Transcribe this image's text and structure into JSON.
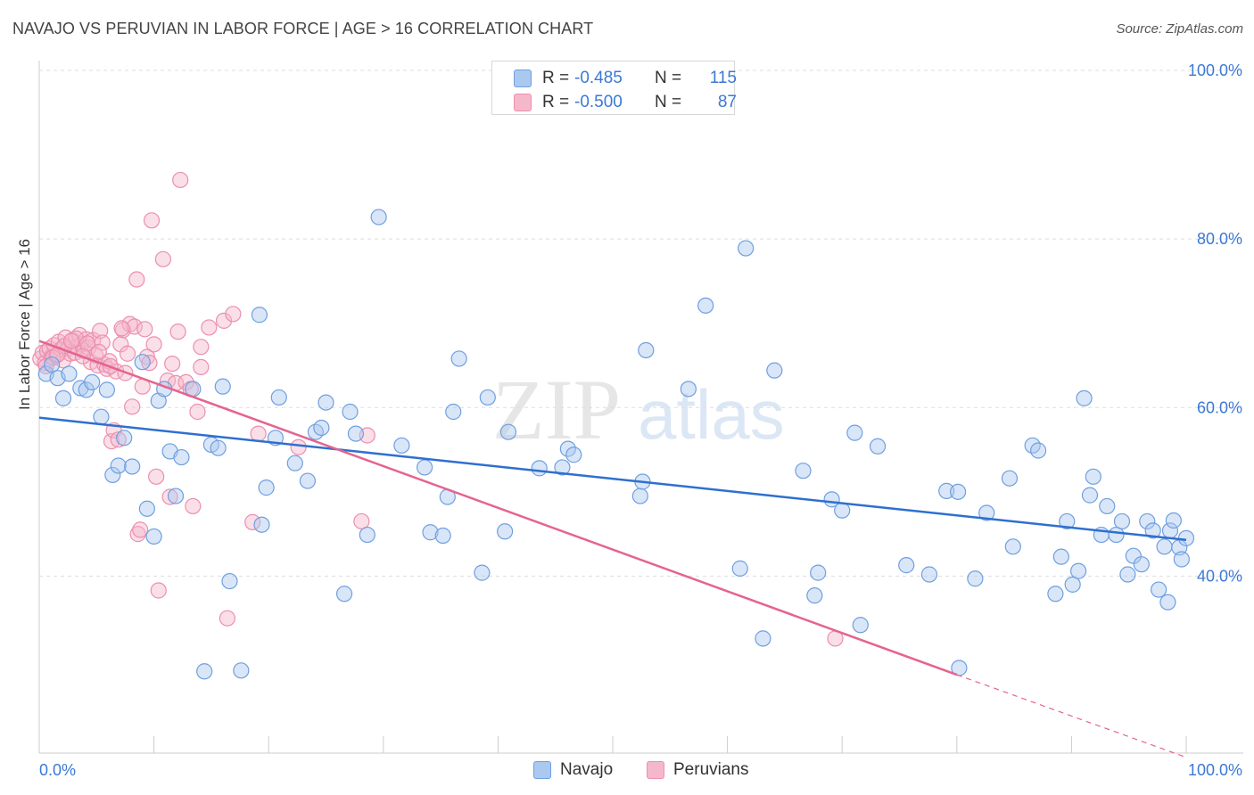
{
  "title": "NAVAJO VS PERUVIAN IN LABOR FORCE | AGE > 16 CORRELATION CHART",
  "source": "Source: ZipAtlas.com",
  "watermark": {
    "zip": "ZIP",
    "atlas": "atlas"
  },
  "legend": {
    "navajo": {
      "r_label": "R =",
      "r_value": "-0.485",
      "n_label": "N =",
      "n_value": "115"
    },
    "peruvians": {
      "r_label": "R =",
      "r_value": "-0.500",
      "n_label": "N =",
      "n_value": "87"
    }
  },
  "bottom_legend": {
    "navajo": "Navajo",
    "peruvians": "Peruvians"
  },
  "colors": {
    "navajo_fill": "#aac8f0",
    "navajo_stroke": "#6f9fe0",
    "navajo_line": "#2f6fcf",
    "peru_fill": "#f5b8cb",
    "peru_stroke": "#ec8fae",
    "peru_line": "#e5648f",
    "axis_text": "#3b78d6",
    "grid": "#dddddd"
  },
  "chart_data": {
    "type": "scatter",
    "title": "NAVAJO VS PERUVIAN IN LABOR FORCE | AGE > 16 CORRELATION CHART",
    "xlabel": "",
    "ylabel": "In Labor Force | Age > 16",
    "xlim": [
      0,
      100
    ],
    "ylim": [
      19,
      100
    ],
    "x_tick_labels": [
      "0.0%",
      "100.0%"
    ],
    "y_ticks": [
      40,
      60,
      80,
      100
    ],
    "y_tick_labels": [
      "40.0%",
      "60.0%",
      "80.0%",
      "100.0%"
    ],
    "series": [
      {
        "name": "Navajo",
        "trend": {
          "x": [
            0,
            100
          ],
          "y": [
            58.8,
            44.3
          ]
        },
        "points": [
          [
            0.6,
            64.0
          ],
          [
            1.1,
            65.1
          ],
          [
            1.6,
            63.5
          ],
          [
            2.1,
            61.1
          ],
          [
            2.6,
            64.0
          ],
          [
            3.6,
            62.3
          ],
          [
            4.1,
            62.1
          ],
          [
            4.6,
            63.0
          ],
          [
            5.4,
            58.9
          ],
          [
            5.9,
            62.1
          ],
          [
            6.4,
            52.0
          ],
          [
            6.9,
            53.1
          ],
          [
            7.4,
            56.4
          ],
          [
            8.1,
            53.0
          ],
          [
            9.0,
            65.4
          ],
          [
            9.4,
            48.0
          ],
          [
            10.0,
            44.7
          ],
          [
            10.4,
            60.8
          ],
          [
            10.9,
            62.2
          ],
          [
            11.4,
            54.8
          ],
          [
            11.9,
            49.5
          ],
          [
            12.4,
            54.1
          ],
          [
            13.4,
            62.2
          ],
          [
            14.4,
            28.7
          ],
          [
            15.0,
            55.6
          ],
          [
            15.6,
            55.2
          ],
          [
            16.0,
            62.5
          ],
          [
            16.6,
            39.4
          ],
          [
            17.6,
            28.8
          ],
          [
            19.2,
            71.0
          ],
          [
            19.4,
            46.1
          ],
          [
            19.8,
            50.5
          ],
          [
            20.6,
            56.4
          ],
          [
            20.9,
            61.2
          ],
          [
            22.3,
            53.4
          ],
          [
            23.4,
            51.3
          ],
          [
            24.1,
            57.1
          ],
          [
            24.6,
            57.6
          ],
          [
            25.0,
            60.6
          ],
          [
            26.6,
            37.9
          ],
          [
            27.1,
            59.5
          ],
          [
            27.6,
            56.9
          ],
          [
            28.6,
            44.9
          ],
          [
            29.6,
            82.6
          ],
          [
            31.6,
            55.5
          ],
          [
            33.6,
            52.9
          ],
          [
            34.1,
            45.2
          ],
          [
            35.2,
            44.8
          ],
          [
            35.6,
            49.4
          ],
          [
            36.1,
            59.5
          ],
          [
            36.6,
            65.8
          ],
          [
            38.6,
            40.4
          ],
          [
            39.1,
            61.2
          ],
          [
            40.6,
            45.3
          ],
          [
            40.9,
            57.1
          ],
          [
            43.6,
            52.8
          ],
          [
            45.6,
            52.9
          ],
          [
            46.1,
            55.1
          ],
          [
            46.6,
            54.4
          ],
          [
            52.4,
            49.5
          ],
          [
            52.6,
            51.2
          ],
          [
            52.9,
            66.8
          ],
          [
            56.6,
            62.2
          ],
          [
            58.1,
            72.1
          ],
          [
            61.1,
            40.9
          ],
          [
            61.6,
            78.9
          ],
          [
            63.1,
            32.6
          ],
          [
            64.1,
            64.4
          ],
          [
            66.6,
            52.5
          ],
          [
            67.6,
            37.7
          ],
          [
            67.9,
            40.4
          ],
          [
            69.1,
            49.1
          ],
          [
            70.0,
            47.8
          ],
          [
            71.1,
            57.0
          ],
          [
            71.6,
            34.2
          ],
          [
            73.1,
            55.4
          ],
          [
            75.6,
            41.3
          ],
          [
            77.6,
            40.2
          ],
          [
            79.1,
            50.1
          ],
          [
            80.1,
            50.0
          ],
          [
            81.6,
            39.7
          ],
          [
            82.6,
            47.5
          ],
          [
            84.6,
            51.6
          ],
          [
            84.9,
            43.5
          ],
          [
            86.6,
            55.5
          ],
          [
            87.1,
            54.9
          ],
          [
            88.6,
            37.9
          ],
          [
            89.1,
            42.3
          ],
          [
            89.6,
            46.5
          ],
          [
            90.1,
            39.0
          ],
          [
            90.6,
            40.6
          ],
          [
            91.1,
            61.1
          ],
          [
            91.6,
            49.6
          ],
          [
            91.9,
            51.8
          ],
          [
            92.6,
            44.9
          ],
          [
            93.1,
            48.3
          ],
          [
            93.9,
            44.9
          ],
          [
            94.4,
            46.5
          ],
          [
            94.9,
            40.2
          ],
          [
            95.4,
            42.4
          ],
          [
            96.1,
            41.4
          ],
          [
            96.6,
            46.5
          ],
          [
            97.1,
            45.4
          ],
          [
            97.6,
            38.4
          ],
          [
            98.1,
            43.5
          ],
          [
            98.4,
            36.9
          ],
          [
            98.6,
            45.4
          ],
          [
            98.9,
            46.6
          ],
          [
            99.4,
            43.4
          ],
          [
            99.6,
            42.0
          ],
          [
            100.0,
            44.5
          ],
          [
            80.2,
            29.1
          ]
        ]
      },
      {
        "name": "Peruvians",
        "trend": {
          "x": [
            0,
            80
          ],
          "y": [
            67.9,
            28.3
          ]
        },
        "trend_dashed": {
          "x": [
            80,
            100
          ],
          "y": [
            28.3,
            18.5
          ]
        },
        "points": [
          [
            0.1,
            65.8
          ],
          [
            0.3,
            66.5
          ],
          [
            0.5,
            65.3
          ],
          [
            0.7,
            66.7
          ],
          [
            0.9,
            67.0
          ],
          [
            1.1,
            66.0
          ],
          [
            1.3,
            67.4
          ],
          [
            1.5,
            66.2
          ],
          [
            1.7,
            67.8
          ],
          [
            1.9,
            66.9
          ],
          [
            2.1,
            65.6
          ],
          [
            2.3,
            68.3
          ],
          [
            2.5,
            67.0
          ],
          [
            2.7,
            66.4
          ],
          [
            2.9,
            68.0
          ],
          [
            3.1,
            66.5
          ],
          [
            3.3,
            67.2
          ],
          [
            3.5,
            68.6
          ],
          [
            3.7,
            67.5
          ],
          [
            3.9,
            66.7
          ],
          [
            4.1,
            68.1
          ],
          [
            4.3,
            67.1
          ],
          [
            4.5,
            65.4
          ],
          [
            4.7,
            68.0
          ],
          [
            4.9,
            66.2
          ],
          [
            5.1,
            65.0
          ],
          [
            5.3,
            69.1
          ],
          [
            5.5,
            67.7
          ],
          [
            5.7,
            65.1
          ],
          [
            5.9,
            64.6
          ],
          [
            6.1,
            65.5
          ],
          [
            6.3,
            56.0
          ],
          [
            6.5,
            57.3
          ],
          [
            6.7,
            64.3
          ],
          [
            6.9,
            56.2
          ],
          [
            7.1,
            67.5
          ],
          [
            7.3,
            69.2
          ],
          [
            7.5,
            64.1
          ],
          [
            7.7,
            66.4
          ],
          [
            7.9,
            69.9
          ],
          [
            8.1,
            60.1
          ],
          [
            8.3,
            69.6
          ],
          [
            8.5,
            75.2
          ],
          [
            8.6,
            45.0
          ],
          [
            8.8,
            45.5
          ],
          [
            9.0,
            62.5
          ],
          [
            9.2,
            69.3
          ],
          [
            9.4,
            66.0
          ],
          [
            9.6,
            65.3
          ],
          [
            9.8,
            82.2
          ],
          [
            10.0,
            67.5
          ],
          [
            10.2,
            51.8
          ],
          [
            10.4,
            38.3
          ],
          [
            10.8,
            77.6
          ],
          [
            11.2,
            63.2
          ],
          [
            11.4,
            49.4
          ],
          [
            11.6,
            65.2
          ],
          [
            11.9,
            62.9
          ],
          [
            12.1,
            69.0
          ],
          [
            12.3,
            87.0
          ],
          [
            12.8,
            63.0
          ],
          [
            13.2,
            62.2
          ],
          [
            13.4,
            48.3
          ],
          [
            13.8,
            59.5
          ],
          [
            14.1,
            64.8
          ],
          [
            14.1,
            67.2
          ],
          [
            14.8,
            69.5
          ],
          [
            16.1,
            70.3
          ],
          [
            16.4,
            35.0
          ],
          [
            16.9,
            71.1
          ],
          [
            18.6,
            46.4
          ],
          [
            19.1,
            56.9
          ],
          [
            22.6,
            55.3
          ],
          [
            28.1,
            46.5
          ],
          [
            28.6,
            56.7
          ],
          [
            69.4,
            32.6
          ],
          [
            1.2,
            65.9
          ],
          [
            2.2,
            67.3
          ],
          [
            3.2,
            68.2
          ],
          [
            4.2,
            67.6
          ],
          [
            5.2,
            66.6
          ],
          [
            6.2,
            64.9
          ],
          [
            7.2,
            69.4
          ],
          [
            3.8,
            66.1
          ],
          [
            2.8,
            67.9
          ],
          [
            1.6,
            66.3
          ],
          [
            0.6,
            64.9
          ]
        ]
      }
    ]
  }
}
